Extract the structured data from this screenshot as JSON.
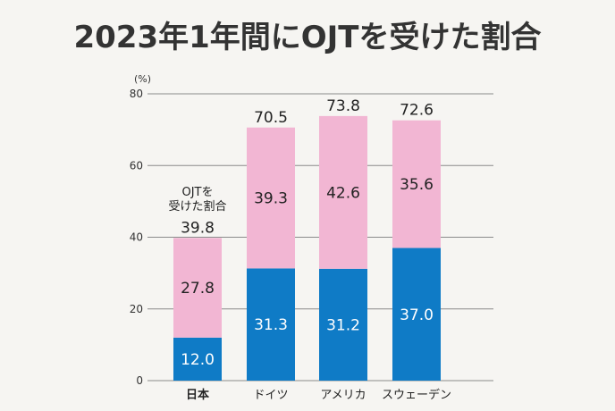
{
  "title": "2023年1年間にOJTを受けた割合",
  "colors": {
    "segment_top": "#f2b6d3",
    "segment_bottom": "#0f7bc6",
    "grid": "#8a8a8a",
    "background": "#f6f5f2"
  },
  "chart_data": {
    "type": "bar",
    "stacked": true,
    "y_unit": "(%)",
    "ylim": [
      0,
      80
    ],
    "yticks": [
      0,
      20,
      40,
      60,
      80
    ],
    "grid": true,
    "categories": [
      "日本",
      "ドイツ",
      "アメリカ",
      "スウェーデン"
    ],
    "bold_categories": [
      "日本"
    ],
    "series": [
      {
        "values": [
          12.0,
          31.3,
          31.2,
          37.0
        ],
        "color": "#0f7bc6"
      },
      {
        "values": [
          27.8,
          39.3,
          42.6,
          35.6
        ],
        "color": "#f2b6d3"
      }
    ],
    "totals": [
      39.8,
      70.5,
      73.8,
      72.6
    ],
    "annotation": [
      "OJTを",
      "受けた割合"
    ]
  }
}
